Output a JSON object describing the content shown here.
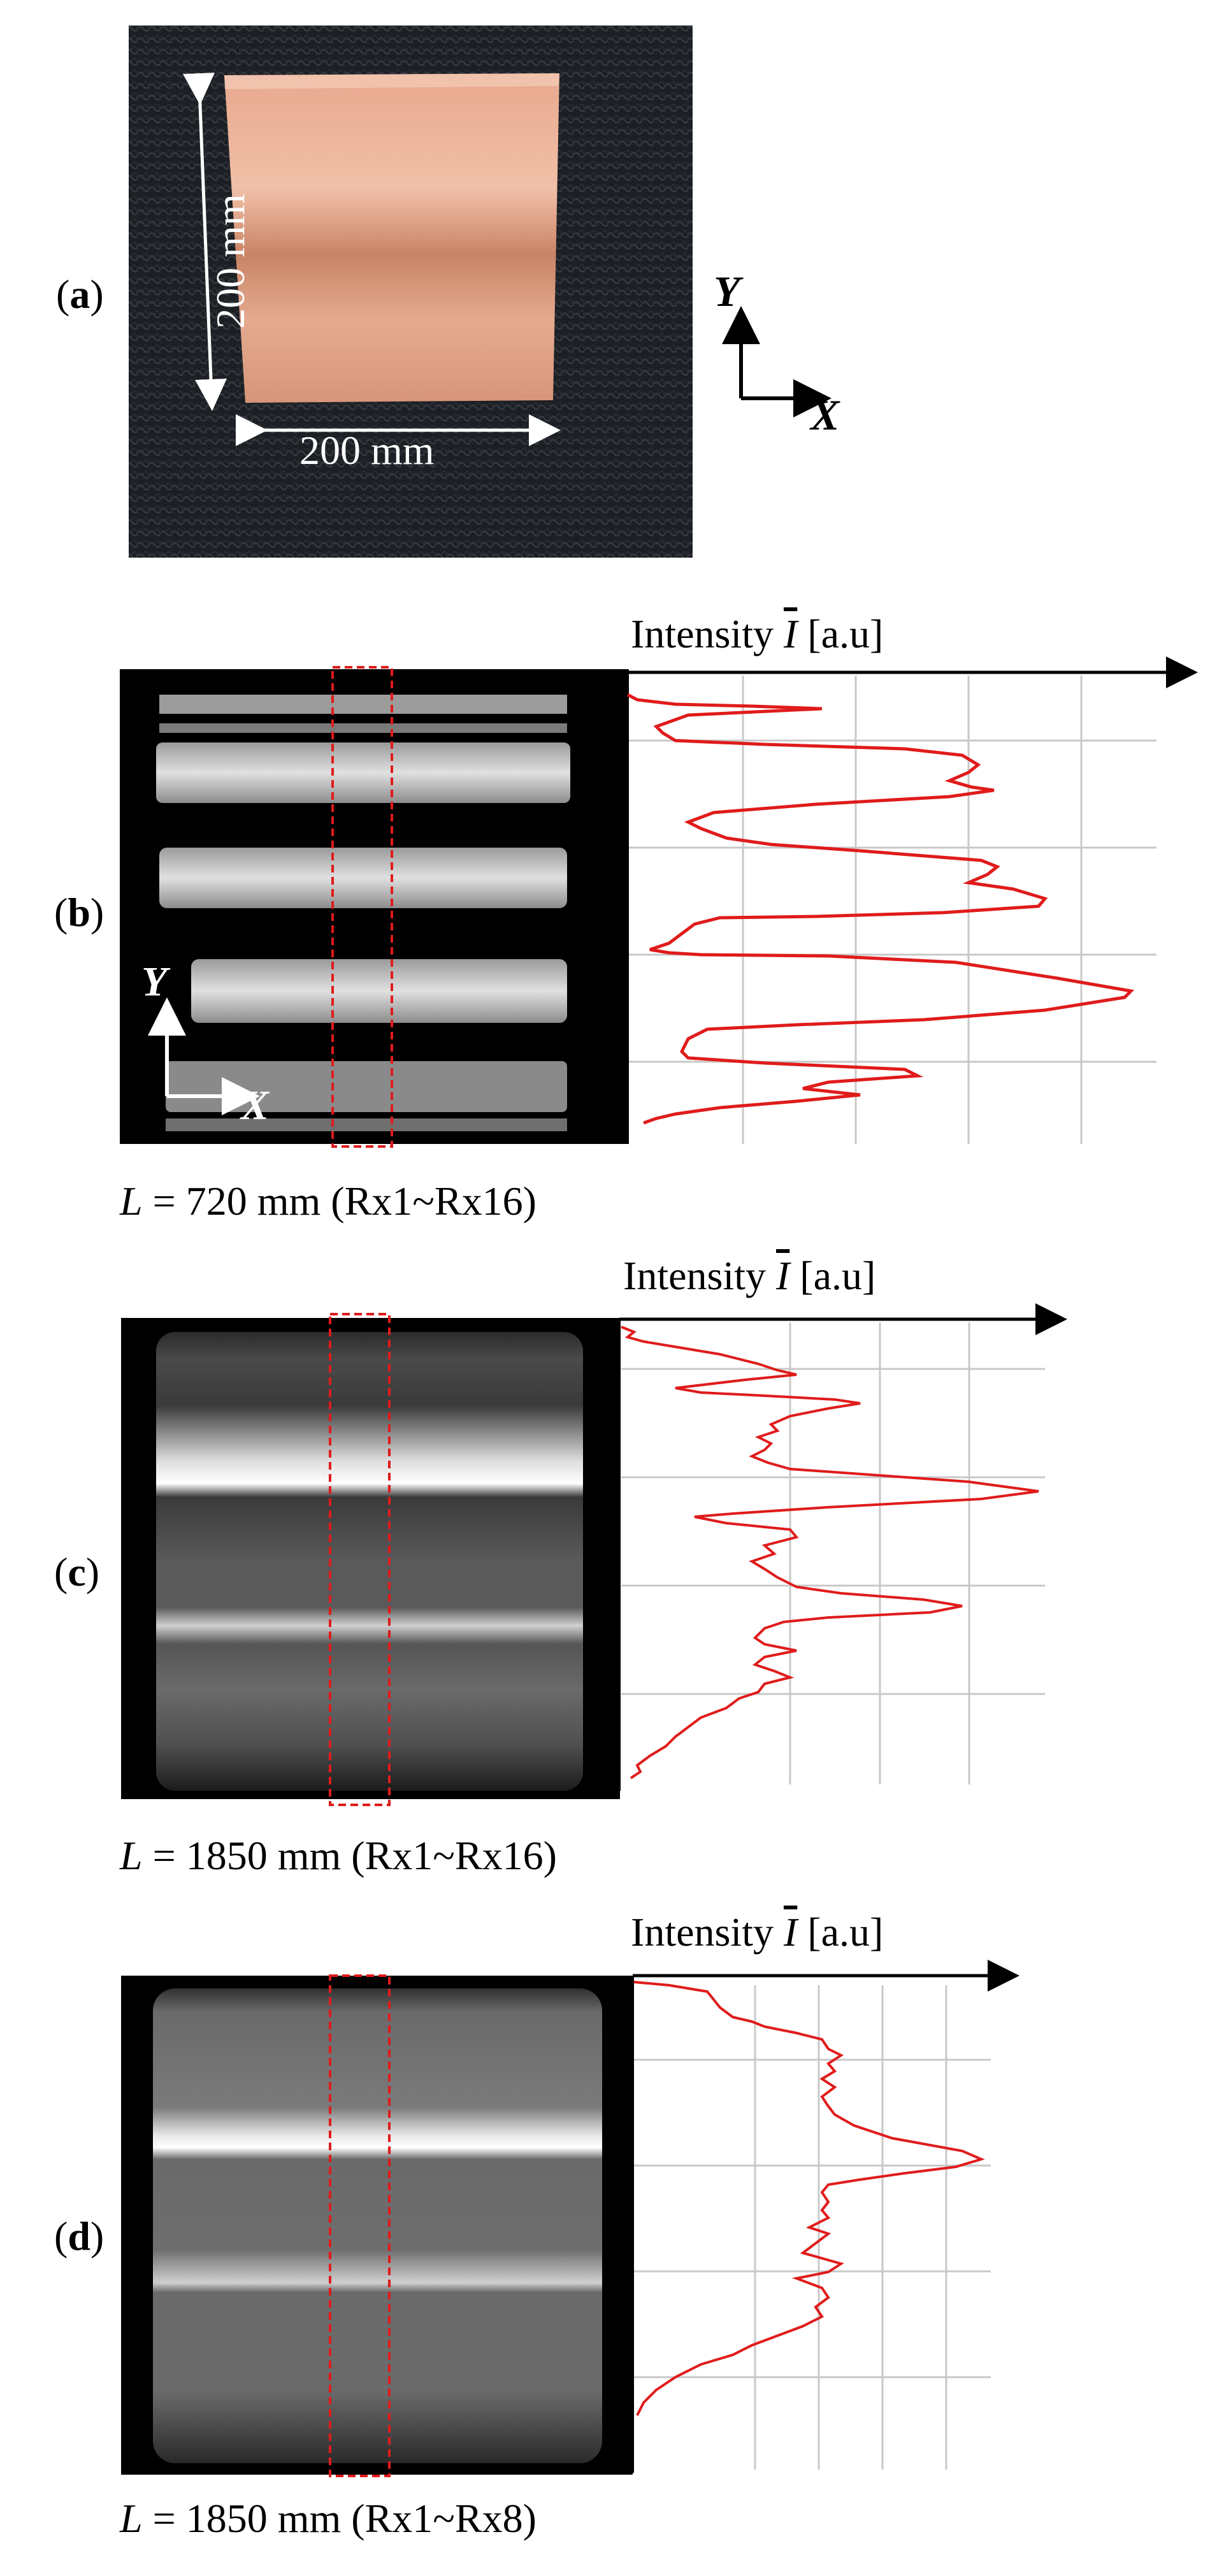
{
  "panels": [
    {
      "id": "a",
      "label_open": "(",
      "label_letter": "a",
      "label_close": ")"
    },
    {
      "id": "b",
      "label_open": "(",
      "label_letter": "b",
      "label_close": ")",
      "axis_title_pre": "Intensity ",
      "axis_title_sym": "I",
      "axis_title_post": " [a.u]",
      "caption_var": "L",
      "caption_text": " = 720 mm (Rx1~Rx16)"
    },
    {
      "id": "c",
      "label_open": "(",
      "label_letter": "c",
      "label_close": ")",
      "axis_title_pre": "Intensity ",
      "axis_title_sym": "I",
      "axis_title_post": " [a.u]",
      "caption_var": "L",
      "caption_text": " = 1850 mm (Rx1~Rx16)"
    },
    {
      "id": "d",
      "label_open": "(",
      "label_letter": "d",
      "label_close": ")",
      "axis_title_pre": "Intensity ",
      "axis_title_sym": "I",
      "axis_title_post": " [a.u]",
      "caption_var": "L",
      "caption_text": " = 1850 mm (Rx1~Rx8)"
    }
  ],
  "photo": {
    "dim_vertical": "200 mm",
    "dim_horizontal": "200 mm",
    "axis_x": "X",
    "axis_y": "Y"
  },
  "image_b_axes": {
    "axis_x": "X",
    "axis_y": "Y"
  },
  "colors": {
    "profile_line": "#e01b1b",
    "roi_box": "#e01b1b",
    "grid": "#c8c8c8",
    "copper": "#d9977c",
    "background_photo": "#22262b"
  }
}
